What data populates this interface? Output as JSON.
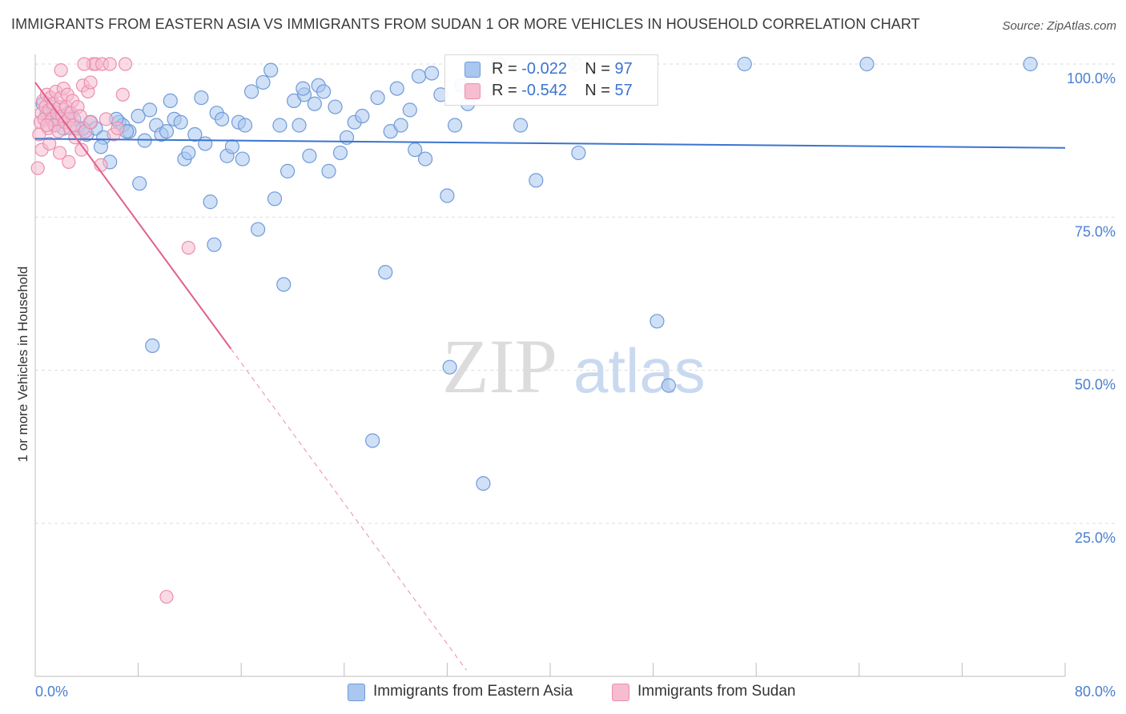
{
  "title": "IMMIGRANTS FROM EASTERN ASIA VS IMMIGRANTS FROM SUDAN 1 OR MORE VEHICLES IN HOUSEHOLD CORRELATION CHART",
  "source": "Source: ZipAtlas.com",
  "watermark": {
    "zip": "ZIP",
    "atlas": "atlas"
  },
  "legend": {
    "rows": [
      {
        "r_label": "R =",
        "r_value": "-0.022",
        "n_label": "N =",
        "n_value": "97"
      },
      {
        "r_label": "R =",
        "r_value": "-0.542",
        "n_label": "N =",
        "n_value": "57"
      }
    ]
  },
  "colors": {
    "blue_fill": "#a9c7ef",
    "blue_stroke": "#6f9bd9",
    "blue_line": "#3a74cf",
    "pink_fill": "#f6bcd0",
    "pink_stroke": "#ec8fae",
    "pink_line": "#e0608a",
    "tick_text": "#4a7fd0",
    "grid": "#dddddd"
  },
  "chart_data": {
    "type": "scatter",
    "title": "IMMIGRANTS FROM EASTERN ASIA VS IMMIGRANTS FROM SUDAN 1 OR MORE VEHICLES IN HOUSEHOLD CORRELATION CHART",
    "xlabel": "",
    "ylabel": "1 or more Vehicles in Household",
    "xlim": [
      0,
      80
    ],
    "ylim": [
      0,
      102
    ],
    "x_tick_labels": [
      "0.0%",
      "80.0%"
    ],
    "y_ticks": [
      25,
      50,
      75,
      100
    ],
    "y_tick_labels": [
      "25.0%",
      "50.0%",
      "75.0%",
      "100.0%"
    ],
    "grid": true,
    "legend_position": "bottom",
    "series": [
      {
        "name": "Immigrants from Eastern Asia",
        "color": "#a9c7ef",
        "trend": {
          "x": [
            0,
            80
          ],
          "y": [
            87.8,
            86.3
          ],
          "style": "solid"
        },
        "points": [
          [
            0.6,
            93.5
          ],
          [
            0.9,
            92
          ],
          [
            1.2,
            91
          ],
          [
            1.5,
            90
          ],
          [
            1.9,
            91
          ],
          [
            2.2,
            89.5
          ],
          [
            2.6,
            92
          ],
          [
            3,
            91
          ],
          [
            3.3,
            89.5
          ],
          [
            4,
            88.5
          ],
          [
            4.3,
            90.5
          ],
          [
            4.7,
            89.5
          ],
          [
            5.3,
            88
          ],
          [
            5.8,
            84
          ],
          [
            6.5,
            90.5
          ],
          [
            6.8,
            90
          ],
          [
            7.3,
            89
          ],
          [
            8,
            91.5
          ],
          [
            8.1,
            80.5
          ],
          [
            8.5,
            87.5
          ],
          [
            8.9,
            92.5
          ],
          [
            9.4,
            90
          ],
          [
            9.8,
            88.5
          ],
          [
            10.2,
            89
          ],
          [
            10.5,
            94
          ],
          [
            10.8,
            91
          ],
          [
            11.3,
            90.5
          ],
          [
            11.6,
            84.5
          ],
          [
            11.9,
            85.5
          ],
          [
            12.4,
            88.5
          ],
          [
            12.9,
            94.5
          ],
          [
            13.2,
            87
          ],
          [
            13.6,
            77.5
          ],
          [
            14.1,
            92
          ],
          [
            14.5,
            91
          ],
          [
            14.9,
            85
          ],
          [
            15.3,
            86.5
          ],
          [
            15.8,
            90.5
          ],
          [
            16.3,
            90
          ],
          [
            16.8,
            95.5
          ],
          [
            17.3,
            73
          ],
          [
            17.7,
            97
          ],
          [
            18.3,
            99
          ],
          [
            18.6,
            78
          ],
          [
            19,
            90
          ],
          [
            19.3,
            64
          ],
          [
            19.6,
            82.5
          ],
          [
            20.1,
            94
          ],
          [
            20.5,
            90
          ],
          [
            20.9,
            95
          ],
          [
            21.3,
            85
          ],
          [
            21.7,
            93.5
          ],
          [
            22,
            96.5
          ],
          [
            22.4,
            95.5
          ],
          [
            22.8,
            82.5
          ],
          [
            23.3,
            93
          ],
          [
            23.7,
            85.5
          ],
          [
            24.8,
            90.5
          ],
          [
            25.4,
            91.5
          ],
          [
            26.2,
            38.5
          ],
          [
            26.6,
            94.5
          ],
          [
            27.2,
            66
          ],
          [
            27.6,
            89
          ],
          [
            28.1,
            96
          ],
          [
            28.4,
            90
          ],
          [
            29.1,
            92.5
          ],
          [
            29.5,
            86
          ],
          [
            29.8,
            98
          ],
          [
            30.3,
            84.5
          ],
          [
            30.8,
            98.5
          ],
          [
            32,
            78.5
          ],
          [
            32.2,
            50.5
          ],
          [
            32.6,
            90
          ],
          [
            33.1,
            96.5
          ],
          [
            33.6,
            93.5
          ],
          [
            34.8,
            31.5
          ],
          [
            36,
            100
          ],
          [
            37.7,
            90
          ],
          [
            38.9,
            81
          ],
          [
            42,
            100
          ],
          [
            42.2,
            85.5
          ],
          [
            48.3,
            58
          ],
          [
            49.2,
            47.5
          ],
          [
            55.1,
            100
          ],
          [
            64.6,
            100
          ],
          [
            77.3,
            100
          ],
          [
            1.4,
            93
          ],
          [
            3.7,
            89.5
          ],
          [
            5.1,
            86.5
          ],
          [
            6.3,
            91
          ],
          [
            7.1,
            89
          ],
          [
            9.1,
            54
          ],
          [
            13.9,
            70.5
          ],
          [
            16.1,
            84.5
          ],
          [
            20.8,
            96
          ],
          [
            24.2,
            88
          ],
          [
            31.5,
            95
          ]
        ]
      },
      {
        "name": "Immigrants from Sudan",
        "color": "#f6bcd0",
        "trend": {
          "x": [
            0,
            15.2,
            33.5
          ],
          "y": [
            97,
            53.5,
            1
          ],
          "style": "solid-then-dashed"
        },
        "points": [
          [
            0.2,
            83
          ],
          [
            0.4,
            90.5
          ],
          [
            0.5,
            92
          ],
          [
            0.6,
            94
          ],
          [
            0.7,
            91
          ],
          [
            0.8,
            93
          ],
          [
            0.9,
            95
          ],
          [
            1,
            89.5
          ],
          [
            1.1,
            92.5
          ],
          [
            1.2,
            94.5
          ],
          [
            1.3,
            91
          ],
          [
            1.4,
            93.5
          ],
          [
            1.5,
            90
          ],
          [
            1.6,
            95.5
          ],
          [
            1.7,
            92
          ],
          [
            1.8,
            89
          ],
          [
            1.9,
            93
          ],
          [
            2,
            94.5
          ],
          [
            2.1,
            91.5
          ],
          [
            2.2,
            96
          ],
          [
            2.3,
            90.5
          ],
          [
            2.4,
            93
          ],
          [
            2.5,
            95
          ],
          [
            2.6,
            91
          ],
          [
            2.7,
            89.5
          ],
          [
            2.8,
            92
          ],
          [
            2.9,
            94
          ],
          [
            3,
            90
          ],
          [
            3.1,
            88
          ],
          [
            3.3,
            93
          ],
          [
            3.5,
            91.5
          ],
          [
            3.7,
            96.5
          ],
          [
            3.9,
            89
          ],
          [
            4.1,
            95.5
          ],
          [
            4.3,
            90.5
          ],
          [
            4.5,
            100
          ],
          [
            4.7,
            100
          ],
          [
            5.2,
            100
          ],
          [
            5.8,
            100
          ],
          [
            6.1,
            88.5
          ],
          [
            6.4,
            89.5
          ],
          [
            6.8,
            95
          ],
          [
            7,
            100
          ],
          [
            0.3,
            88.5
          ],
          [
            0.5,
            86
          ],
          [
            1.1,
            87
          ],
          [
            1.9,
            85.5
          ],
          [
            2.6,
            84
          ],
          [
            3.6,
            86
          ],
          [
            3.8,
            100
          ],
          [
            4.3,
            97
          ],
          [
            5.5,
            91
          ],
          [
            5.1,
            83.5
          ],
          [
            10.2,
            13
          ],
          [
            11.9,
            70
          ],
          [
            2,
            99
          ],
          [
            0.9,
            90
          ]
        ]
      }
    ]
  },
  "bottom_legend": [
    "Immigrants from Eastern Asia",
    "Immigrants from Sudan"
  ]
}
